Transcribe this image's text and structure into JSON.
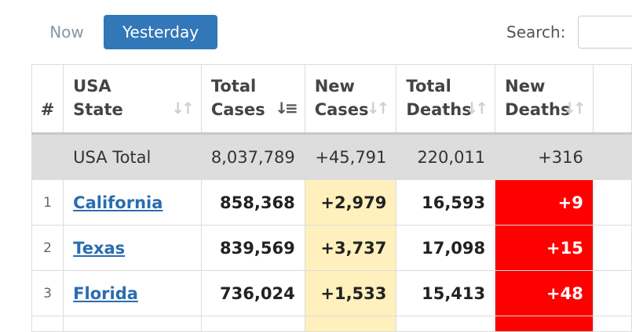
{
  "tabs": {
    "now_label": "Now",
    "yesterday_label": "Yesterday"
  },
  "search": {
    "label": "Search:",
    "value": ""
  },
  "table": {
    "headers": {
      "rank": "#",
      "state_line1": "USA",
      "state_line2": "State",
      "total_cases_line1": "Total",
      "total_cases_line2": "Cases",
      "new_cases_line1": "New",
      "new_cases_line2": "Cases",
      "total_deaths_line1": "Total",
      "total_deaths_line2": "Deaths",
      "new_deaths_line1": "New",
      "new_deaths_line2": "Deaths"
    },
    "total_row": {
      "label": "USA Total",
      "total_cases": "8,037,789",
      "new_cases": "+45,791",
      "total_deaths": "220,011",
      "new_deaths": "+316"
    },
    "rows": [
      {
        "rank": "1",
        "state": "California",
        "total_cases": "858,368",
        "new_cases": "+2,979",
        "total_deaths": "16,593",
        "new_deaths": "+9"
      },
      {
        "rank": "2",
        "state": "Texas",
        "total_cases": "839,569",
        "new_cases": "+3,737",
        "total_deaths": "17,098",
        "new_deaths": "+15"
      },
      {
        "rank": "3",
        "state": "Florida",
        "total_cases": "736,024",
        "new_cases": "+1,533",
        "total_deaths": "15,413",
        "new_deaths": "+48"
      }
    ]
  },
  "colors": {
    "active_tab": "#3277b8",
    "new_cases_bg": "#fff0bd",
    "new_deaths_bg": "#ff0000",
    "total_row_bg": "#dddddd",
    "link": "#2b6cb0"
  },
  "icons": {
    "sort_inactive": "sort-both-icon",
    "sort_active": "sort-descending-icon"
  }
}
